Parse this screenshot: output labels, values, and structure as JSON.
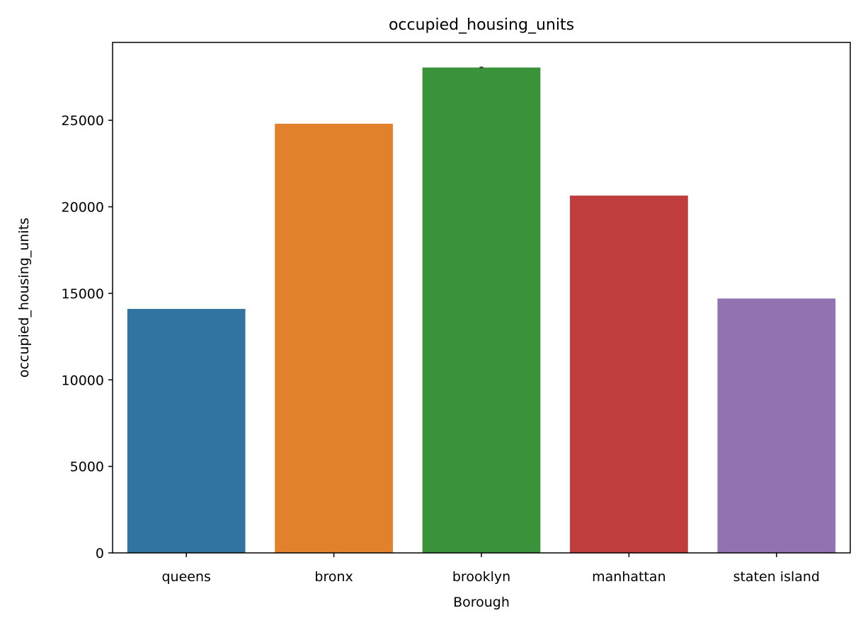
{
  "chart_data": {
    "type": "bar",
    "title": "occupied_housing_units",
    "xlabel": "Borough",
    "ylabel": "occupied_housing_units",
    "categories": [
      "queens",
      "bronx",
      "brooklyn",
      "manhattan",
      "staten island"
    ],
    "values": [
      14100,
      24800,
      28050,
      20650,
      14700
    ],
    "error_bars": [
      null,
      null,
      [
        28000,
        28100
      ],
      null,
      null
    ],
    "colors": [
      "#3274a1",
      "#e1812c",
      "#3a923a",
      "#c03d3e",
      "#9372b2"
    ],
    "ylim": [
      0,
      29500
    ],
    "yticks": [
      0,
      5000,
      10000,
      15000,
      20000,
      25000
    ],
    "yticklabels": [
      "0",
      "5000",
      "10000",
      "15000",
      "20000",
      "25000"
    ],
    "grid": false,
    "legend": "none"
  }
}
